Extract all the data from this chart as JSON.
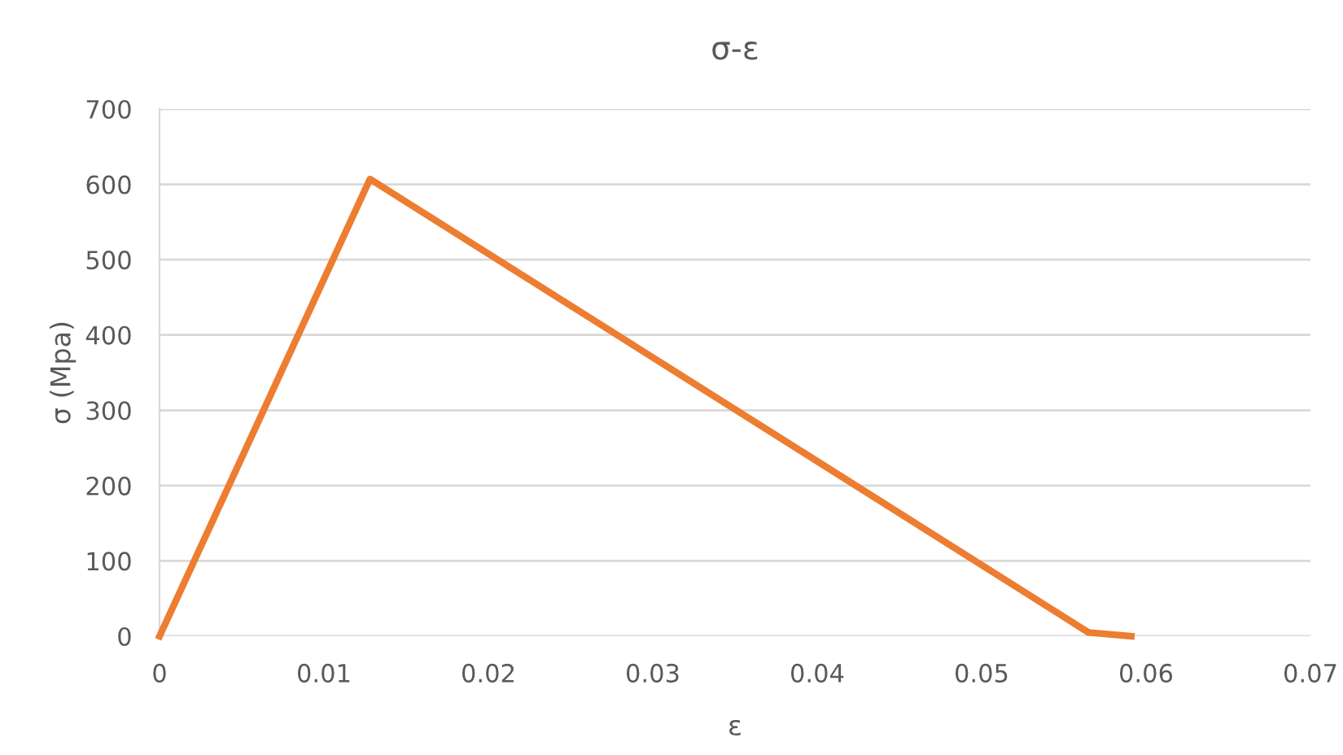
{
  "chart_data": {
    "type": "line",
    "title": "σ-ε",
    "xlabel": "ε",
    "ylabel": "σ (Mpa)",
    "series": [
      {
        "color": "#ed7d31",
        "x": [
          0,
          0.0128,
          0.0565,
          0.0591
        ],
        "values": [
          0,
          607,
          5,
          0
        ]
      }
    ],
    "xlim": [
      0,
      0.07
    ],
    "xticks": [
      0,
      0.01,
      0.02,
      0.03,
      0.04,
      0.05,
      0.06,
      0.07
    ],
    "ylim": [
      0,
      700
    ],
    "yticks": [
      0,
      100,
      200,
      300,
      400,
      500,
      600,
      700
    ],
    "grid": "y",
    "legend": false,
    "marker": "none",
    "line_style": "solid"
  }
}
